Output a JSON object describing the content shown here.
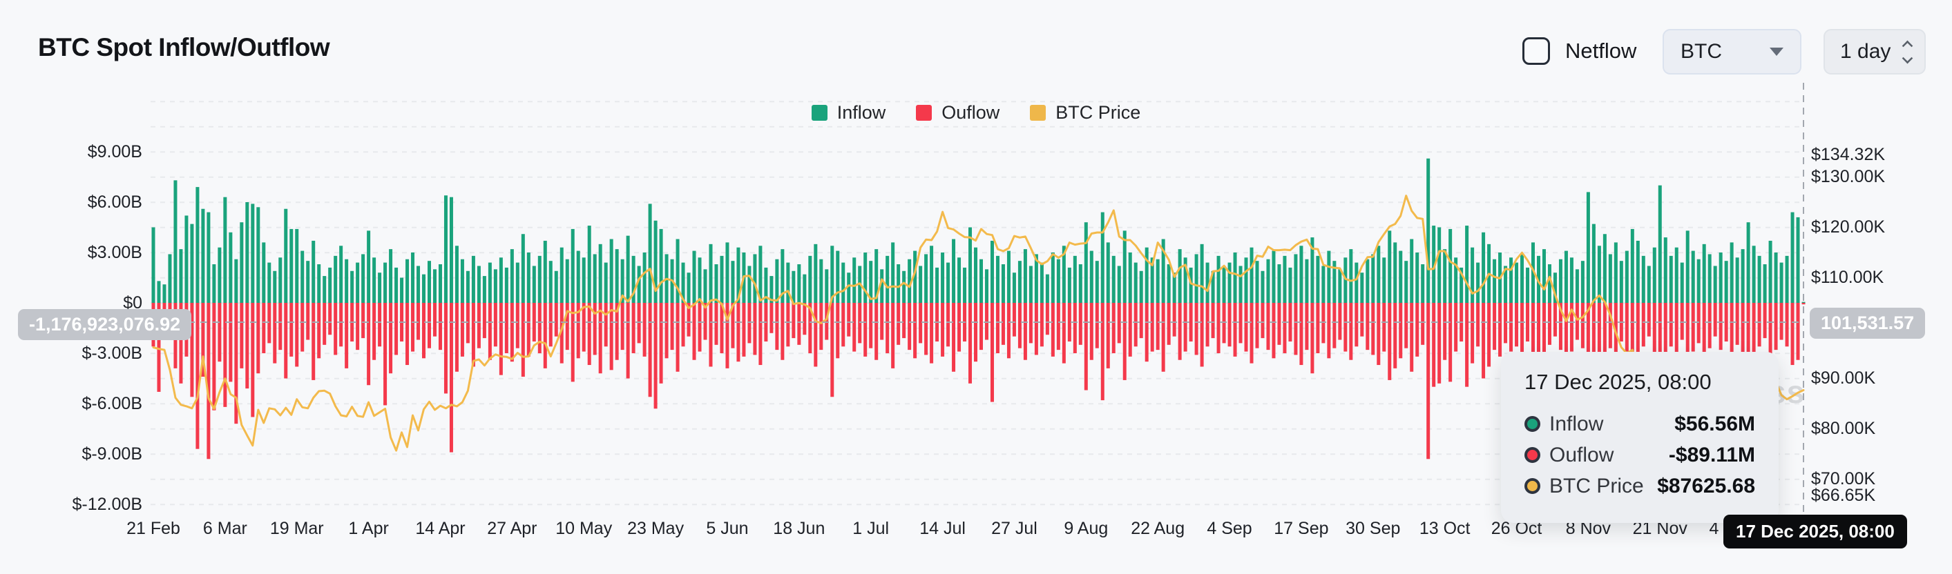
{
  "header": {
    "title": "BTC Spot Inflow/Outflow"
  },
  "controls": {
    "netflow_label": "Netflow",
    "netflow_checked": false,
    "symbol_select": "BTC",
    "interval_select": "1 day"
  },
  "legend": [
    {
      "label": "Inflow",
      "color": "#1AA37C"
    },
    {
      "label": "Ouflow",
      "color": "#F4394B"
    },
    {
      "label": "BTC Price",
      "color": "#EFB74A"
    }
  ],
  "watermark": "coinglass",
  "crosshair": {
    "y_left_value": "-1,176,923,076.92",
    "y_right_value": "101,531.57",
    "x_value": "17 Dec 2025, 08:00"
  },
  "tooltip": {
    "title": "17 Dec 2025, 08:00",
    "rows": [
      {
        "label": "Inflow",
        "value": "$56.56M",
        "color": "#1AA37C"
      },
      {
        "label": "Ouflow",
        "value": "-$89.11M",
        "color": "#F4394B"
      },
      {
        "label": "BTC Price",
        "value": "$87625.68",
        "color": "#EFB74A"
      }
    ]
  },
  "chart_data": {
    "type": "bar",
    "subtype": "dual-axis bars with price line",
    "title": "BTC Spot Inflow/Outflow",
    "start_date": "21 Feb 2025",
    "end_date": "17 Dec 2025",
    "interval": "1 day",
    "grid": "dashed horizontal every $1.5B / $5K",
    "left_axis": {
      "unit": "USD (billions)",
      "range": [
        -13.1,
        13.1
      ],
      "ticks": [
        {
          "label": "$9.00B",
          "v": 9
        },
        {
          "label": "$6.00B",
          "v": 6
        },
        {
          "label": "$3.00B",
          "v": 3
        },
        {
          "label": "$0",
          "v": 0
        },
        {
          "label": "$-3.00B",
          "v": -3
        },
        {
          "label": "$-6.00B",
          "v": -6
        },
        {
          "label": "$-9.00B",
          "v": -9
        },
        {
          "label": "$-12.00B",
          "v": -12
        }
      ]
    },
    "right_axis": {
      "unit": "BTC price (USD thousands)",
      "range": [
        66.65,
        134.32
      ],
      "ticks": [
        {
          "label": "$134.32K",
          "v": 134.32
        },
        {
          "label": "$130.00K",
          "v": 130
        },
        {
          "label": "$120.00K",
          "v": 120
        },
        {
          "label": "$110.00K",
          "v": 110
        },
        {
          "label": "$90.00K",
          "v": 90
        },
        {
          "label": "$80.00K",
          "v": 80
        },
        {
          "label": "$70.00K",
          "v": 70
        },
        {
          "label": "$66.65K",
          "v": 66.65
        }
      ]
    },
    "x_ticks": [
      {
        "label": "21 Feb",
        "day": 0
      },
      {
        "label": "6 Mar",
        "day": 13
      },
      {
        "label": "19 Mar",
        "day": 26
      },
      {
        "label": "1 Apr",
        "day": 39
      },
      {
        "label": "14 Apr",
        "day": 52
      },
      {
        "label": "27 Apr",
        "day": 65
      },
      {
        "label": "10 May",
        "day": 78
      },
      {
        "label": "23 May",
        "day": 91
      },
      {
        "label": "5 Jun",
        "day": 104
      },
      {
        "label": "18 Jun",
        "day": 117
      },
      {
        "label": "1 Jul",
        "day": 130
      },
      {
        "label": "14 Jul",
        "day": 143
      },
      {
        "label": "27 Jul",
        "day": 156
      },
      {
        "label": "9 Aug",
        "day": 169
      },
      {
        "label": "22 Aug",
        "day": 182
      },
      {
        "label": "4 Sep",
        "day": 195
      },
      {
        "label": "17 Sep",
        "day": 208
      },
      {
        "label": "30 Sep",
        "day": 221
      },
      {
        "label": "13 Oct",
        "day": 234
      },
      {
        "label": "26 Oct",
        "day": 247
      },
      {
        "label": "8 Nov",
        "day": 260
      },
      {
        "label": "21 Nov",
        "day": 273
      },
      {
        "label": "4 Dec",
        "day": 286
      }
    ],
    "series": [
      {
        "name": "Inflow",
        "type": "bar",
        "color": "#1AA37C",
        "unit": "$B",
        "values": [
          4.5,
          1.3,
          1.1,
          2.9,
          7.3,
          3.2,
          5.2,
          4.7,
          6.9,
          5.6,
          5.4,
          2.3,
          3.3,
          6.3,
          4.2,
          2.6,
          4.8,
          6.0,
          5.9,
          5.7,
          3.6,
          2.4,
          1.9,
          2.7,
          5.6,
          4.4,
          4.4,
          3.1,
          2.5,
          3.7,
          2.3,
          1.6,
          2.1,
          2.8,
          3.4,
          2.6,
          1.9,
          2.4,
          2.9,
          4.3,
          2.7,
          1.8,
          2.4,
          3.2,
          2.1,
          1.5,
          2.6,
          3.0,
          2.2,
          1.7,
          2.5,
          2.0,
          2.3,
          6.4,
          6.3,
          3.4,
          2.6,
          1.9,
          2.8,
          2.2,
          1.6,
          2.4,
          2.0,
          2.7,
          2.1,
          3.2,
          2.4,
          4.1,
          3.0,
          2.2,
          2.8,
          3.7,
          2.5,
          1.9,
          3.3,
          2.6,
          4.4,
          3.1,
          2.7,
          4.6,
          2.9,
          3.5,
          2.4,
          3.8,
          3.2,
          2.6,
          4.0,
          2.8,
          2.2,
          3.0,
          5.9,
          4.9,
          4.4,
          2.9,
          2.6,
          3.8,
          2.4,
          1.8,
          3.1,
          2.7,
          2.0,
          3.5,
          2.3,
          2.8,
          3.6,
          2.5,
          3.3,
          3.0,
          2.2,
          2.9,
          3.4,
          2.1,
          1.6,
          2.6,
          3.2,
          2.4,
          1.9,
          2.3,
          1.7,
          2.8,
          3.5,
          2.6,
          2.0,
          3.4,
          3.1,
          2.4,
          1.8,
          2.7,
          2.2,
          3.0,
          2.5,
          3.2,
          2.0,
          2.8,
          3.6,
          2.3,
          1.9,
          2.6,
          3.1,
          2.2,
          2.9,
          3.4,
          2.1,
          3.0,
          2.4,
          3.8,
          2.7,
          2.1,
          4.5,
          3.3,
          2.6,
          2.0,
          3.7,
          2.8,
          2.3,
          3.1,
          1.8,
          2.5,
          3.2,
          2.2,
          2.9,
          2.4,
          1.7,
          3.0,
          2.6,
          3.4,
          2.1,
          2.8,
          2.3,
          4.8,
          3.1,
          2.5,
          5.4,
          3.6,
          2.8,
          2.2,
          4.3,
          3.0,
          2.4,
          1.9,
          3.3,
          2.7,
          2.6,
          3.8,
          2.3,
          1.8,
          3.2,
          2.7,
          2.1,
          2.9,
          3.5,
          2.4,
          1.9,
          2.8,
          2.2,
          2.4,
          3.0,
          2.2,
          2.7,
          3.3,
          2.5,
          1.9,
          2.6,
          3.1,
          2.3,
          2.8,
          2.1,
          2.9,
          3.4,
          2.6,
          3.9,
          2.8,
          2.2,
          3.1,
          2.5,
          2.0,
          2.7,
          3.2,
          2.4,
          1.8,
          2.6,
          2.9,
          3.4,
          2.7,
          4.3,
          3.6,
          3.1,
          2.5,
          3.8,
          3.0,
          2.3,
          8.6,
          4.6,
          4.5,
          3.2,
          4.4,
          2.7,
          2.1,
          4.6,
          3.3,
          2.4,
          4.2,
          3.5,
          2.6,
          3.0,
          2.2,
          2.7,
          2.4,
          2.9,
          2.1,
          3.6,
          2.8,
          3.2,
          2.3,
          1.8,
          2.6,
          3.1,
          2.7,
          2.0,
          2.5,
          6.6,
          4.7,
          3.4,
          4.1,
          2.9,
          3.6,
          2.5,
          3.1,
          4.4,
          3.7,
          2.8,
          2.2,
          3.3,
          7.0,
          3.9,
          2.8,
          3.3,
          2.4,
          4.3,
          3.1,
          2.6,
          3.5,
          2.9,
          2.2,
          3.0,
          2.5,
          3.6,
          2.7,
          3.2,
          4.8,
          3.4,
          2.8,
          2.3,
          3.7,
          3.0,
          2.4,
          2.8,
          5.4,
          5.1,
          0.057
        ]
      },
      {
        "name": "Ouflow",
        "type": "bar",
        "color": "#F4394B",
        "unit": "$B",
        "values": [
          -2.6,
          -5.3,
          -2.2,
          -1.5,
          -3.9,
          -4.8,
          -3.2,
          -5.6,
          -8.7,
          -4.4,
          -9.3,
          -6.4,
          -3.5,
          -6.2,
          -4.7,
          -7.2,
          -3.9,
          -5.1,
          -6.8,
          -4.2,
          -3.0,
          -2.4,
          -3.6,
          -2.8,
          -4.5,
          -3.2,
          -3.8,
          -2.9,
          -2.2,
          -4.6,
          -3.3,
          -2.5,
          -1.9,
          -3.1,
          -2.6,
          -3.9,
          -2.3,
          -2.8,
          -2.1,
          -4.9,
          -3.4,
          -2.6,
          -6.1,
          -4.2,
          -3.1,
          -2.3,
          -3.7,
          -2.9,
          -2.2,
          -3.3,
          -2.7,
          -2.0,
          -2.8,
          -5.4,
          -8.9,
          -4.1,
          -3.2,
          -2.4,
          -3.8,
          -2.7,
          -2.1,
          -3.4,
          -2.6,
          -4.3,
          -3.0,
          -3.5,
          -2.7,
          -4.4,
          -3.2,
          -2.3,
          -3.0,
          -3.9,
          -2.6,
          -2.0,
          -3.6,
          -2.8,
          -4.7,
          -3.3,
          -2.9,
          -3.7,
          -3.1,
          -4.2,
          -2.6,
          -4.0,
          -3.4,
          -2.8,
          -4.5,
          -3.0,
          -2.4,
          -3.2,
          -5.6,
          -6.3,
          -4.8,
          -3.3,
          -2.8,
          -4.1,
          -2.6,
          -2.0,
          -3.4,
          -2.9,
          -2.2,
          -3.8,
          -2.5,
          -3.0,
          -3.9,
          -2.7,
          -3.5,
          -3.2,
          -2.4,
          -3.1,
          -3.7,
          -2.3,
          -1.8,
          -2.8,
          -3.4,
          -2.6,
          -2.1,
          -2.5,
          -1.9,
          -3.0,
          -3.8,
          -2.8,
          -2.2,
          -5.6,
          -3.3,
          -2.6,
          -2.0,
          -2.9,
          -2.4,
          -3.2,
          -2.7,
          -3.4,
          -2.2,
          -3.0,
          -3.9,
          -2.5,
          -2.1,
          -2.8,
          -3.3,
          -2.4,
          -3.1,
          -3.6,
          -2.3,
          -3.2,
          -2.6,
          -4.1,
          -2.9,
          -2.3,
          -4.8,
          -3.5,
          -2.8,
          -2.2,
          -5.9,
          -3.0,
          -2.5,
          -3.3,
          -2.0,
          -2.7,
          -3.4,
          -2.4,
          -3.1,
          -2.6,
          -1.9,
          -3.2,
          -2.8,
          -3.6,
          -2.3,
          -3.0,
          -2.5,
          -5.2,
          -3.4,
          -2.7,
          -5.8,
          -3.9,
          -3.0,
          -2.4,
          -4.6,
          -3.2,
          -2.6,
          -2.1,
          -3.5,
          -2.9,
          -2.8,
          -4.1,
          -2.5,
          -2.0,
          -3.4,
          -2.9,
          -2.3,
          -3.1,
          -3.8,
          -2.6,
          -2.1,
          -3.0,
          -2.4,
          -2.6,
          -3.2,
          -2.4,
          -2.9,
          -3.6,
          -2.7,
          -2.1,
          -2.8,
          -3.3,
          -2.5,
          -3.0,
          -2.3,
          -3.1,
          -3.7,
          -2.8,
          -4.2,
          -3.0,
          -2.4,
          -3.3,
          -2.7,
          -2.2,
          -2.9,
          -3.4,
          -2.6,
          -2.0,
          -2.8,
          -3.1,
          -3.7,
          -2.9,
          -4.6,
          -3.9,
          -3.3,
          -2.7,
          -4.1,
          -3.2,
          -2.5,
          -9.3,
          -5.0,
          -4.8,
          -3.4,
          -4.7,
          -2.9,
          -2.3,
          -5.0,
          -3.6,
          -2.6,
          -4.5,
          -3.8,
          -2.8,
          -3.2,
          -2.4,
          -2.9,
          -2.6,
          -3.1,
          -2.3,
          -3.9,
          -3.0,
          -3.4,
          -2.5,
          -2.0,
          -2.8,
          -3.3,
          -2.9,
          -2.2,
          -2.7,
          -5.9,
          -4.3,
          -3.1,
          -3.8,
          -2.7,
          -3.3,
          -2.3,
          -2.9,
          -4.1,
          -3.4,
          -2.6,
          -2.0,
          -3.0,
          -6.5,
          -3.6,
          -2.6,
          -3.1,
          -2.2,
          -4.0,
          -2.9,
          -2.4,
          -3.2,
          -2.7,
          -2.0,
          -2.8,
          -2.3,
          -3.3,
          -2.5,
          -3.0,
          -4.4,
          -3.1,
          -2.6,
          -2.1,
          -3.4,
          -2.8,
          -2.2,
          -2.6,
          -3.7,
          -3.4,
          -0.089
        ]
      },
      {
        "name": "BTC Price",
        "type": "line",
        "color": "#F3BA4C",
        "unit": "$K",
        "values": [
          96.1,
          95.8,
          95.6,
          91.6,
          86.1,
          84.7,
          84.4,
          84.0,
          86.1,
          94.3,
          86.0,
          83.9,
          87.2,
          89.9,
          86.8,
          86.1,
          80.7,
          78.6,
          76.6,
          83.7,
          81.1,
          84.0,
          83.8,
          82.6,
          84.1,
          82.7,
          85.8,
          84.2,
          84.0,
          86.1,
          87.4,
          87.5,
          86.9,
          84.4,
          82.6,
          82.4,
          84.3,
          82.5,
          82.3,
          85.2,
          82.5,
          83.2,
          83.9,
          78.2,
          75.6,
          79.2,
          76.3,
          82.6,
          79.6,
          83.8,
          85.3,
          83.7,
          84.5,
          84.0,
          84.7,
          84.4,
          85.2,
          87.5,
          93.4,
          93.7,
          92.5,
          93.9,
          94.7,
          94.3,
          94.2,
          93.8,
          95.0,
          94.2,
          94.3,
          96.5,
          97.2,
          96.9,
          94.3,
          96.9,
          99.7,
          103.3,
          102.9,
          103.1,
          104.1,
          104.2,
          102.8,
          103.4,
          102.6,
          103.5,
          103.2,
          106.4,
          105.2,
          106.8,
          109.7,
          110.9,
          111.7,
          107.3,
          109.0,
          109.7,
          109.4,
          107.8,
          105.6,
          103.9,
          104.6,
          105.7,
          104.0,
          105.4,
          105.6,
          104.7,
          101.6,
          104.4,
          105.7,
          110.2,
          110.3,
          108.7,
          105.4,
          106.1,
          105.5,
          105.4,
          106.8,
          107.3,
          104.7,
          104.9,
          104.6,
          103.9,
          101.3,
          100.9,
          101.7,
          106.1,
          107.0,
          107.3,
          108.4,
          108.3,
          108.8,
          107.3,
          105.7,
          105.9,
          109.6,
          108.0,
          108.2,
          108.1,
          108.9,
          108.1,
          111.0,
          115.9,
          117.5,
          117.4,
          119.1,
          123.0,
          119.8,
          119.5,
          118.7,
          118.0,
          117.9,
          117.3,
          119.6,
          118.6,
          118.4,
          115.6,
          115.2,
          115.8,
          118.2,
          117.9,
          118.1,
          115.8,
          113.4,
          112.6,
          113.2,
          114.6,
          113.9,
          114.6,
          116.9,
          116.5,
          116.7,
          116.8,
          118.7,
          118.9,
          118.9,
          120.9,
          123.3,
          118.1,
          117.4,
          117.4,
          116.3,
          114.8,
          113.4,
          112.4,
          116.9,
          115.3,
          113.5,
          110.1,
          111.9,
          112.5,
          108.8,
          108.4,
          108.2,
          107.3,
          111.2,
          111.3,
          112.3,
          110.9,
          110.7,
          110.2,
          111.2,
          112.0,
          114.3,
          114.1,
          116.1,
          115.4,
          115.4,
          115.5,
          115.4,
          116.4,
          117.1,
          117.5,
          115.7,
          115.6,
          112.5,
          112.1,
          111.9,
          111.8,
          109.7,
          109.3,
          109.6,
          112.2,
          114.0,
          114.1,
          117.0,
          118.6,
          120.1,
          120.6,
          122.2,
          126.2,
          123.2,
          121.8,
          121.6,
          111.6,
          111.7,
          115.2,
          115.2,
          113.1,
          112.5,
          110.8,
          108.8,
          106.8,
          107.3,
          108.7,
          110.7,
          110.1,
          109.8,
          111.7,
          111.5,
          113.6,
          114.9,
          113.4,
          111.5,
          109.1,
          107.6,
          110.1,
          106.5,
          103.6,
          101.3,
          103.6,
          101.6,
          102.1,
          103.5,
          105.4,
          106.4,
          105.1,
          102.5,
          99.0,
          96.1,
          94.9,
          95.6,
          92.0,
          90.5,
          86.9,
          84.6,
          84.6,
          86.1,
          87.8,
          88.7,
          90.5,
          91.3,
          90.8,
          91.4,
          86.0,
          87.3,
          91.5,
          93.4,
          92.9,
          92.0,
          89.5,
          90.2,
          91.2,
          90.1,
          89.8,
          90.7,
          89.9,
          89.2,
          86.6,
          85.8,
          86.4,
          87.1,
          87.6
        ]
      }
    ]
  }
}
